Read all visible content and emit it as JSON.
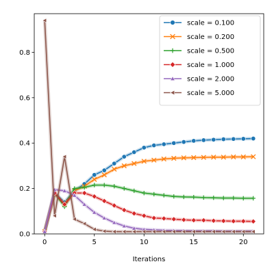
{
  "chart_data": {
    "type": "line",
    "title": "",
    "xlabel": "Iterations",
    "ylabel": "",
    "xlim": [
      -1.05,
      22.05
    ],
    "ylim": [
      0,
      0.97
    ],
    "xticks": [
      0,
      5,
      10,
      15,
      20
    ],
    "yticks": [
      0.0,
      0.2,
      0.4,
      0.6,
      0.8
    ],
    "ytick_labels": [
      "0.0",
      "0.2",
      "0.4",
      "0.6",
      "0.8"
    ],
    "grid": false,
    "legend_position": "top-right",
    "x": [
      0,
      1,
      2,
      3,
      4,
      5,
      6,
      7,
      8,
      9,
      10,
      11,
      12,
      13,
      14,
      15,
      16,
      17,
      18,
      19,
      20,
      21
    ],
    "series": [
      {
        "name": "scale = 0.100",
        "color": "#1f77b4",
        "marker": "circle",
        "values": [
          0.01,
          0.18,
          0.14,
          0.19,
          0.22,
          0.26,
          0.28,
          0.31,
          0.34,
          0.36,
          0.38,
          0.39,
          0.395,
          0.4,
          0.405,
          0.41,
          0.413,
          0.415,
          0.417,
          0.418,
          0.419,
          0.42
        ]
      },
      {
        "name": "scale = 0.200",
        "color": "#ff7f0e",
        "marker": "x",
        "values": [
          0.01,
          0.18,
          0.13,
          0.19,
          0.21,
          0.24,
          0.26,
          0.285,
          0.3,
          0.31,
          0.32,
          0.325,
          0.33,
          0.333,
          0.335,
          0.336,
          0.337,
          0.338,
          0.338,
          0.339,
          0.339,
          0.34
        ]
      },
      {
        "name": "scale = 0.500",
        "color": "#2ca02c",
        "marker": "plus",
        "values": [
          0.01,
          0.18,
          0.12,
          0.2,
          0.205,
          0.215,
          0.215,
          0.21,
          0.2,
          0.19,
          0.18,
          0.175,
          0.17,
          0.165,
          0.163,
          0.162,
          0.16,
          0.159,
          0.158,
          0.158,
          0.157,
          0.157
        ]
      },
      {
        "name": "scale = 1.000",
        "color": "#d62728",
        "marker": "diamond",
        "values": [
          0.01,
          0.18,
          0.13,
          0.18,
          0.18,
          0.165,
          0.145,
          0.125,
          0.105,
          0.09,
          0.08,
          0.07,
          0.068,
          0.065,
          0.062,
          0.06,
          0.06,
          0.058,
          0.057,
          0.056,
          0.056,
          0.055
        ]
      },
      {
        "name": "scale = 2.000",
        "color": "#9467bd",
        "marker": "triangle-up",
        "values": [
          0.01,
          0.195,
          0.19,
          0.17,
          0.13,
          0.095,
          0.07,
          0.05,
          0.035,
          0.025,
          0.02,
          0.018,
          0.016,
          0.015,
          0.014,
          0.013,
          0.013,
          0.013,
          0.012,
          0.012,
          0.012,
          0.012
        ]
      },
      {
        "name": "scale = 5.000",
        "color": "#8c564b",
        "marker": "triangle-left",
        "values": [
          0.94,
          0.08,
          0.34,
          0.065,
          0.045,
          0.02,
          0.012,
          0.01,
          0.01,
          0.01,
          0.01,
          0.01,
          0.01,
          0.01,
          0.01,
          0.01,
          0.01,
          0.01,
          0.01,
          0.01,
          0.01,
          0.01
        ]
      }
    ]
  }
}
